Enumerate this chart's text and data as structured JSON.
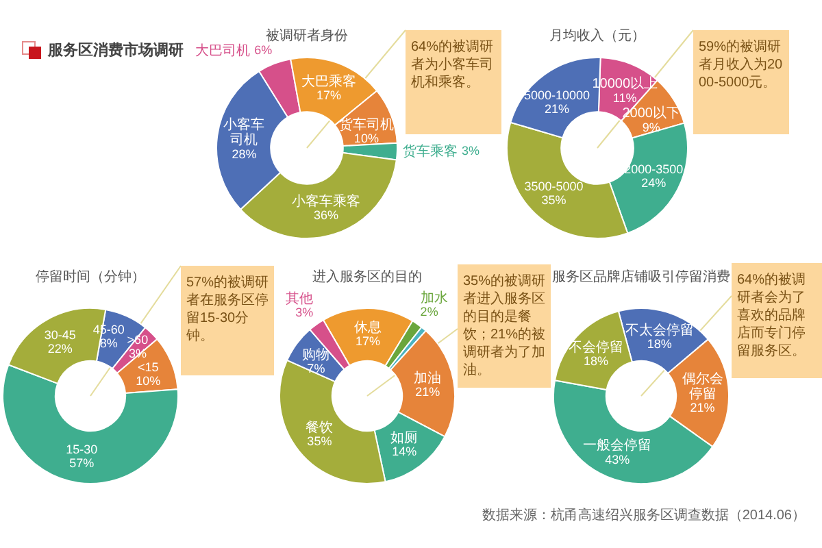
{
  "chart_data": [
    {
      "type": "other",
      "title": "服务区消费市场调研"
    },
    {
      "type": "donut",
      "title": "被调研者身份",
      "categories": [
        "大巴司机",
        "大巴乘客",
        "货车司机",
        "货车乘客",
        "小客车乘客",
        "小客车司机"
      ],
      "values": [
        6,
        17,
        10,
        3,
        36,
        28
      ],
      "value_labels": [
        "6%",
        "17%",
        "10%",
        "3%",
        "36%",
        "28%"
      ],
      "colors": [
        "#d6508a",
        "#ee9a2f",
        "#e6843a",
        "#3fae8f",
        "#a4ad3b",
        "#4e6fb6"
      ],
      "annotations": [
        "64%的被调研者为小客车司机和乘客。"
      ]
    },
    {
      "type": "donut",
      "title": "月均收入（元）",
      "categories": [
        "10000以上",
        "2000以下",
        "2000-3500",
        "3500-5000",
        "5000-10000"
      ],
      "values": [
        11,
        9,
        24,
        35,
        21
      ],
      "value_labels": [
        "11%",
        "9%",
        "24%",
        "35%",
        "21%"
      ],
      "colors": [
        "#d6508a",
        "#e6843a",
        "#3fae8f",
        "#a4ad3b",
        "#4e6fb6"
      ],
      "annotations": [
        "59%的被调研者月收入为2000-5000元。"
      ]
    },
    {
      "type": "donut",
      "title": "停留时间（分钟）",
      "categories": [
        "45-60",
        ">60",
        "<15",
        "15-30",
        "30-45"
      ],
      "values": [
        8,
        3,
        10,
        57,
        22
      ],
      "value_labels": [
        "8%",
        "3%",
        "10%",
        "57%",
        "22%"
      ],
      "colors": [
        "#4e6fb6",
        "#d6508a",
        "#e6843a",
        "#3fae8f",
        "#a4ad3b"
      ],
      "annotations": [
        "57%的被调研者在服务区停留15-30分钟。"
      ]
    },
    {
      "type": "donut",
      "title": "进入服务区的目的",
      "categories": [
        "休息",
        "加水",
        null,
        "加油",
        "如厕",
        "餐饮",
        "购物",
        "其他"
      ],
      "values": [
        17,
        2,
        1,
        21,
        14,
        35,
        7,
        3
      ],
      "value_labels": [
        "17%",
        "2%",
        null,
        "21%",
        "14%",
        "35%",
        "7%",
        "3%"
      ],
      "colors": [
        "#ee9a2f",
        "#6aa63c",
        "#4bb3c0",
        "#e6843a",
        "#3fae8f",
        "#a4ad3b",
        "#4e6fb6",
        "#d6508a"
      ],
      "annotations": [
        "35%的被调研者进入服务区的目的是餐饮；21%的被调研者为了加油。"
      ]
    },
    {
      "type": "donut",
      "title": "服务区品牌店铺吸引停留消费",
      "categories": [
        "不太会停留",
        "偶尔会停留",
        "一般会停留",
        "不会停留"
      ],
      "values": [
        18,
        21,
        43,
        18
      ],
      "value_labels": [
        "18%",
        "21%",
        "43%",
        "18%"
      ],
      "colors": [
        "#4e6fb6",
        "#e6843a",
        "#3fae8f",
        "#a4ad3b"
      ],
      "annotations": [
        "64%的被调研者会为了喜欢的品牌店而专门停留服务区。"
      ]
    },
    {
      "type": "other",
      "annotations": [
        "数据来源：杭甬高速绍兴服务区调查数据（2014.06）"
      ]
    }
  ]
}
